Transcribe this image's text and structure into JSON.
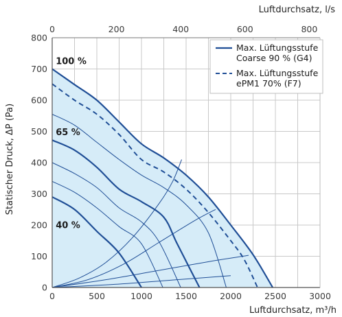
{
  "chart_data": {
    "type": "line",
    "xlabel": "Luftdurchsatz, m³/h",
    "x2label": "Luftdurchsatz, l/s",
    "ylabel": "Statischer Druck, ΔP (Pa)",
    "xlim": [
      0,
      3000
    ],
    "x2lim": [
      0,
      833.33
    ],
    "ylim": [
      0,
      800
    ],
    "xticks": [
      0,
      500,
      1000,
      1500,
      2000,
      2500,
      3000
    ],
    "x2ticks": [
      0,
      200,
      400,
      600,
      800
    ],
    "yticks": [
      0,
      100,
      200,
      300,
      400,
      500,
      600,
      700,
      800
    ],
    "grid": true,
    "legend_position": "top-right",
    "colors": {
      "curve": "#1f4e96",
      "thin": "#1f4e96",
      "fill": "#d6ecf8",
      "grid": "#c8c8c8"
    },
    "legend": [
      {
        "label_line1": "Max. Lüftungsstufe",
        "label_line2": "Coarse 90 % (G4)",
        "style": "solid"
      },
      {
        "label_line1": "Max. Lüftungsstufe",
        "label_line2": "ePM1 70% (F7)",
        "style": "dashed"
      }
    ],
    "area": [
      [
        0,
        700
      ],
      [
        250,
        650
      ],
      [
        500,
        600
      ],
      [
        750,
        530
      ],
      [
        1000,
        460
      ],
      [
        1250,
        415
      ],
      [
        1500,
        360
      ],
      [
        1750,
        290
      ],
      [
        2000,
        200
      ],
      [
        2250,
        105
      ],
      [
        2470,
        0
      ]
    ],
    "series": [
      {
        "name": "Max. Lüftungsstufe Coarse 90 % (G4)",
        "style": "solid",
        "width": 2.2,
        "points": [
          [
            0,
            700
          ],
          [
            250,
            650
          ],
          [
            500,
            600
          ],
          [
            750,
            530
          ],
          [
            1000,
            460
          ],
          [
            1250,
            415
          ],
          [
            1500,
            360
          ],
          [
            1750,
            290
          ],
          [
            2000,
            200
          ],
          [
            2250,
            105
          ],
          [
            2470,
            0
          ]
        ]
      },
      {
        "name": "Max. Lüftungsstufe ePM1 70% (F7)",
        "style": "dashed",
        "width": 2,
        "points": [
          [
            0,
            652
          ],
          [
            250,
            600
          ],
          [
            500,
            555
          ],
          [
            750,
            490
          ],
          [
            1000,
            410
          ],
          [
            1250,
            370
          ],
          [
            1500,
            315
          ],
          [
            1750,
            240
          ],
          [
            2000,
            150
          ],
          [
            2150,
            90
          ],
          [
            2300,
            0
          ]
        ]
      },
      {
        "name": "",
        "style": "solid",
        "width": 1,
        "points": [
          [
            0,
            555
          ],
          [
            250,
            520
          ],
          [
            500,
            465
          ],
          [
            750,
            410
          ],
          [
            1000,
            360
          ],
          [
            1250,
            320
          ],
          [
            1500,
            265
          ],
          [
            1750,
            175
          ],
          [
            1950,
            0
          ]
        ]
      },
      {
        "name": "",
        "style": "solid",
        "width": 2.2,
        "points": [
          [
            0,
            472
          ],
          [
            250,
            440
          ],
          [
            500,
            385
          ],
          [
            750,
            315
          ],
          [
            1000,
            275
          ],
          [
            1250,
            225
          ],
          [
            1400,
            140
          ],
          [
            1650,
            0
          ]
        ]
      },
      {
        "name": "",
        "style": "solid",
        "width": 1,
        "points": [
          [
            0,
            400
          ],
          [
            250,
            365
          ],
          [
            500,
            320
          ],
          [
            750,
            255
          ],
          [
            1000,
            210
          ],
          [
            1200,
            145
          ],
          [
            1440,
            0
          ]
        ]
      },
      {
        "name": "",
        "style": "solid",
        "width": 1,
        "points": [
          [
            0,
            340
          ],
          [
            250,
            305
          ],
          [
            500,
            255
          ],
          [
            750,
            195
          ],
          [
            1000,
            140
          ],
          [
            1240,
            0
          ]
        ]
      },
      {
        "name": "",
        "style": "solid",
        "width": 2.2,
        "points": [
          [
            0,
            290
          ],
          [
            250,
            250
          ],
          [
            500,
            180
          ],
          [
            750,
            110
          ],
          [
            1000,
            0
          ]
        ]
      }
    ],
    "system_curves": [
      {
        "points": [
          [
            0,
            0
          ],
          [
            300,
            30
          ],
          [
            600,
            80
          ],
          [
            900,
            160
          ],
          [
            1200,
            270
          ],
          [
            1350,
            340
          ],
          [
            1450,
            410
          ]
        ]
      },
      {
        "points": [
          [
            0,
            0
          ],
          [
            400,
            25
          ],
          [
            800,
            75
          ],
          [
            1200,
            145
          ],
          [
            1600,
            215
          ],
          [
            1830,
            250
          ]
        ]
      },
      {
        "points": [
          [
            0,
            0
          ],
          [
            600,
            25
          ],
          [
            1200,
            55
          ],
          [
            1800,
            85
          ],
          [
            2200,
            103
          ]
        ]
      },
      {
        "points": [
          [
            0,
            0
          ],
          [
            700,
            10
          ],
          [
            1400,
            25
          ],
          [
            2000,
            38
          ]
        ]
      }
    ],
    "curve_labels": [
      {
        "text": "100 %",
        "x": 40,
        "y": 715
      },
      {
        "text": "65 %",
        "x": 40,
        "y": 488
      },
      {
        "text": "40 %",
        "x": 40,
        "y": 190
      }
    ]
  }
}
